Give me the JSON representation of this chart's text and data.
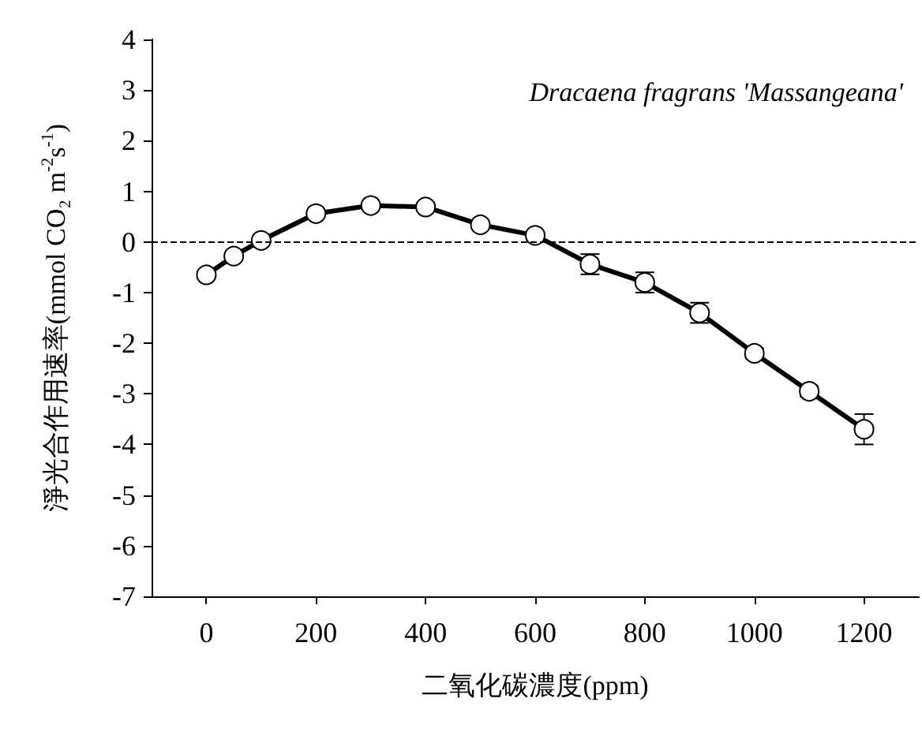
{
  "chart_data": {
    "type": "line",
    "xlabel": "二氧化碳濃度(ppm)",
    "ylabel": "淨光合作用速率(mmol CO₂ m$^{-2}$s$^{-1}$)",
    "annotations": [
      "Dracaena fragrans 'Massangeana'"
    ],
    "x": [
      0,
      50,
      100,
      200,
      300,
      400,
      500,
      600,
      700,
      800,
      900,
      1000,
      1100,
      1200
    ],
    "series": [
      {
        "color": "#000000",
        "values": [
          -0.65,
          -0.28,
          0.03,
          0.56,
          0.72,
          0.69,
          0.34,
          0.13,
          -0.44,
          -0.8,
          -1.4,
          -2.2,
          -2.95,
          -3.7
        ],
        "errors": [
          null,
          null,
          null,
          null,
          null,
          null,
          null,
          null,
          0.2,
          0.2,
          0.2,
          0.1,
          0.1,
          0.3
        ]
      }
    ],
    "xlim": [
      -100,
      1300
    ],
    "xticks": [
      0,
      200,
      400,
      600,
      800,
      1000,
      1200
    ],
    "ylim": [
      -7,
      4
    ],
    "yticks": [
      -7,
      -6,
      -5,
      -4,
      -3,
      -2,
      -1,
      0,
      1,
      2,
      3,
      4
    ],
    "ref_lines": [
      {
        "axis": "y",
        "value": 0,
        "line_style": "dashed",
        "color": "#000000"
      }
    ],
    "marker": "circle",
    "line_style": "solid"
  }
}
